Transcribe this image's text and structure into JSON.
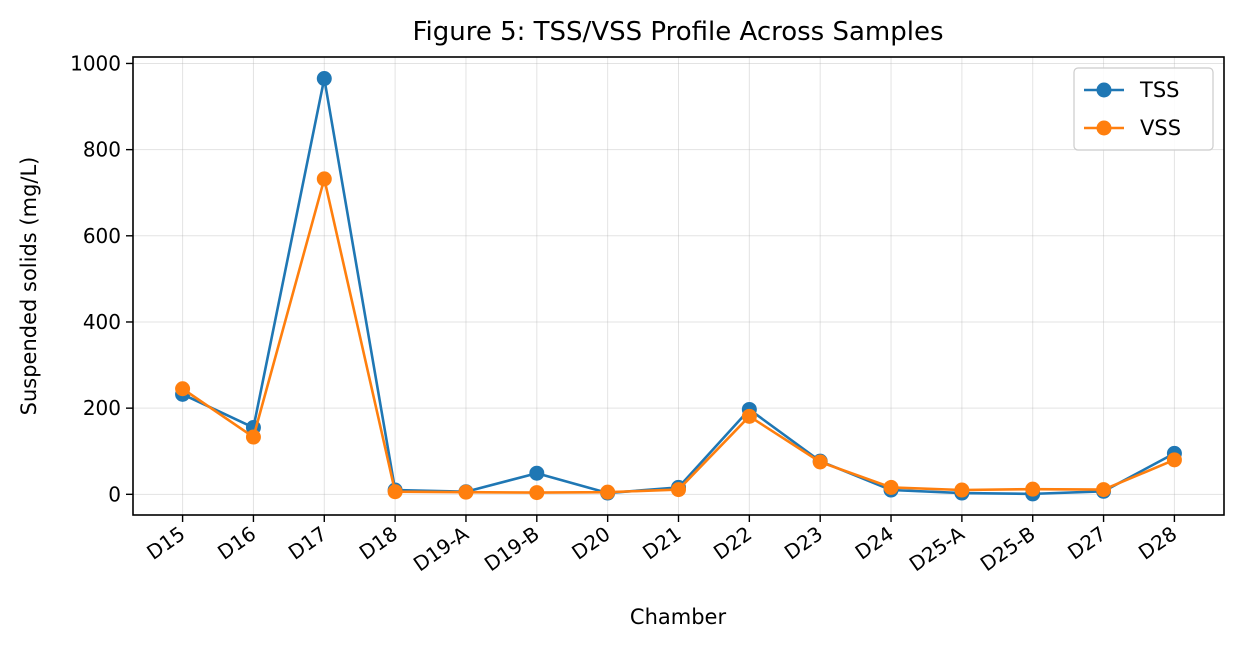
{
  "chart_data": {
    "type": "line",
    "title": "Figure 5: TSS/VSS Profile Across Samples",
    "xlabel": "Chamber",
    "ylabel": "Suspended solids (mg/L)",
    "categories": [
      "D15",
      "D16",
      "D17",
      "D18",
      "D19-A",
      "D19-B",
      "D20",
      "D21",
      "D22",
      "D23",
      "D24",
      "D25-A",
      "D25-B",
      "D27",
      "D28"
    ],
    "ylim": [
      -48,
      1015
    ],
    "yticks": [
      "0",
      "200",
      "400",
      "600",
      "800",
      "1000"
    ],
    "grid": true,
    "legend_position": "top-right",
    "series": [
      {
        "name": "TSS",
        "color": "#1f77b4",
        "values": [
          232,
          155,
          965,
          10,
          6,
          49,
          3,
          16,
          197,
          77,
          10,
          3,
          1,
          7,
          95
        ]
      },
      {
        "name": "VSS",
        "color": "#ff7f0e",
        "values": [
          245,
          133,
          732,
          6,
          5,
          4,
          5,
          11,
          181,
          75,
          16,
          10,
          12,
          11,
          80
        ]
      }
    ]
  }
}
